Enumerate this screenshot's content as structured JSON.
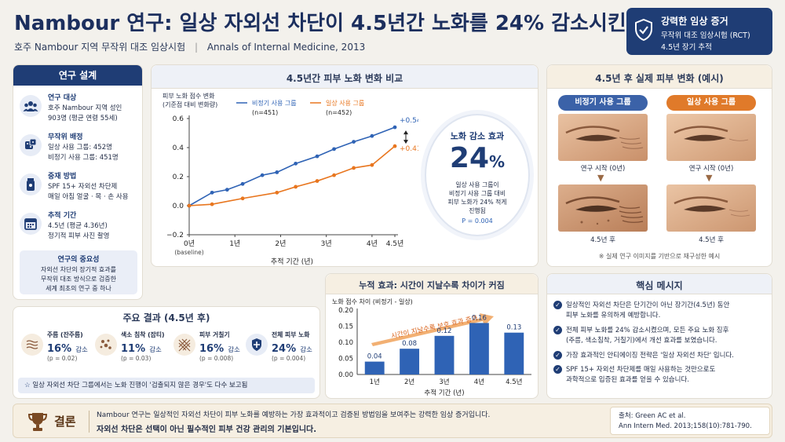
{
  "header": {
    "title": "Nambour 연구: 일상 자외선 차단이 4.5년간 노화를 24% 감소시킨다",
    "subtitle_study": "호주 Nambour 지역 무작위 대조 임상시험",
    "subtitle_sep": "|",
    "subtitle_journal": "Annals of Internal Medicine, 2013",
    "evidence_badge": {
      "title": "강력한 임상 증거",
      "line1": "무작위 대조 임상시험 (RCT)",
      "line2": "4.5년 장기 추적"
    }
  },
  "design": {
    "heading": "연구 설계",
    "items": [
      {
        "icon": "people-icon",
        "title": "연구 대상",
        "lines": [
          "호주 Nambour 지역 성인",
          "903명 (평균 연령 55세)"
        ]
      },
      {
        "icon": "dice-icon",
        "title": "무작위 배정",
        "lines": [
          "일상 사용 그룹: 452명",
          "비정기 사용 그룹: 451명"
        ]
      },
      {
        "icon": "sunscreen-icon",
        "title": "중재 방법",
        "lines": [
          "SPF 15+ 자외선 차단제",
          "매일 아침 얼굴 · 목 · 손 사용"
        ]
      },
      {
        "icon": "calendar-icon",
        "title": "추적 기간",
        "lines": [
          "4.5년 (평균 4.36년)",
          "정기적 피부 사진 촬영"
        ]
      }
    ],
    "importance": {
      "title": "연구의 중요성",
      "lines": [
        "자외선 차단의 장기적 효과를",
        "무작위 대조 방식으로 검증한",
        "세계 최초의 연구 중 하나"
      ]
    }
  },
  "line_chart": {
    "heading": "4.5년간 피부 노화 변화 비교",
    "ylabel_line1": "피부 노화 점수 변화",
    "ylabel_line2": "(기준점 대비 변화량)",
    "end_label_blue": "+0.54",
    "end_label_orange": "+0.41"
  },
  "effect_bubble": {
    "title": "노화 감소 효과",
    "number": "24",
    "unit": "%",
    "lines": [
      "일상 사용 그룹이",
      "비정기 사용 그룹 대비",
      "피부 노화가 24% 적게",
      "진행됨"
    ],
    "p_value": "P = 0.004"
  },
  "photos": {
    "heading": "4.5년 후 실제 피부 변화 (예시)",
    "group_left": "비정기 사용 그룹",
    "group_right": "일상 사용 그룹",
    "start_left": "연구 시작 (0년)",
    "start_right": "연구 시작 (0년)",
    "end_left": "4.5년 후",
    "end_right": "4.5년 후",
    "footnote": "※ 실제 연구 이미지를 기반으로 재구성한 예시"
  },
  "results": {
    "heading": "주요 결과 (4.5년 후)",
    "items": [
      {
        "icon": "wrinkle-icon",
        "name": "주름 (잔주름)",
        "value": "16%",
        "suffix": "감소",
        "p": "(p = 0.02)"
      },
      {
        "icon": "spots-icon",
        "name": "색소 침착 (잡티)",
        "value": "11%",
        "suffix": "감소",
        "p": "(p = 0.03)"
      },
      {
        "icon": "texture-icon",
        "name": "피부 거칠기",
        "value": "16%",
        "suffix": "감소",
        "p": "(p = 0.008)"
      },
      {
        "icon": "shield-plus-icon",
        "name": "전체 피부 노화",
        "value": "24%",
        "suffix": "감소",
        "p": "(p = 0.004)"
      }
    ],
    "note": "일상 자외선 차단 그룹에서는 노화 진행이 '검출되지 않은 경우'도 다수 보고됨"
  },
  "bar_chart": {
    "heading": "누적 효과: 시간이 지날수록 차이가 커짐",
    "arrow_text": "시간이 지날수록 보호 효과 증가"
  },
  "key_messages": {
    "heading": "핵심 메시지",
    "items": [
      [
        "일상적인 자외선 차단은 단기간이 아닌 장기간(4.5년) 동안",
        "피부 노화를 유의하게 예방합니다."
      ],
      [
        "전체 피부 노화를 24% 감소시켰으며, 모든 주요 노화 징후",
        "(주름, 색소침착, 거칠기)에서 개선 효과를 보였습니다."
      ],
      [
        "가장 효과적인 안티에이징 전략은 '일상 자외선 차단' 입니다."
      ],
      [
        "SPF 15+ 자외선 차단제를 매일 사용하는 것만으로도",
        "과학적으로 입증된 효과를 얻을 수 있습니다."
      ]
    ]
  },
  "conclusion": {
    "label": "결론",
    "line1": "Nambour 연구는 일상적인 자외선 차단이 피부 노화를 예방하는 가장 효과적이고 검증된 방법임을 보여주는 강력한 임상 증거입니다.",
    "line2": "자외선 차단은 선택이 아닌 필수적인 피부 건강 관리의 기본입니다.",
    "source_label": "출처: Green AC et al.",
    "source_ref": "Ann Intern Med. 2013;158(10):781-790."
  },
  "colors": {
    "navy": "#1f3d75",
    "blue": "#2f63b5",
    "orange": "#e8761f",
    "bar": "#2f63b5"
  },
  "chart_data": [
    {
      "type": "line",
      "title": "4.5년간 피부 노화 변화 비교",
      "xlabel": "추적 기간 (년)",
      "ylabel": "피부 노화 점수 변화 (기준점 대비 변화량)",
      "x_ticks": [
        "0년",
        "1년",
        "2년",
        "3년",
        "4년",
        "4.5년"
      ],
      "x_tick_sub": "(baseline)",
      "y_ticks": [
        "0.6",
        "0.4",
        "0.2",
        "0.0",
        "−0.2"
      ],
      "ylim": [
        -0.2,
        0.6
      ],
      "xlim": [
        0,
        4.5
      ],
      "grid": false,
      "series": [
        {
          "name": "비정기 사용 그룹",
          "n": "(n=451)",
          "color": "#2f63b5",
          "x": [
            0,
            0.5,
            0.83,
            1.17,
            1.6,
            1.92,
            2.33,
            2.8,
            3.17,
            3.6,
            4.0,
            4.5
          ],
          "y": [
            0.0,
            0.09,
            0.11,
            0.15,
            0.21,
            0.23,
            0.29,
            0.34,
            0.39,
            0.44,
            0.48,
            0.54
          ]
        },
        {
          "name": "일상 사용 그룹",
          "n": "(n=452)",
          "color": "#e8761f",
          "x": [
            0,
            0.5,
            1.17,
            1.92,
            2.33,
            2.8,
            3.17,
            3.6,
            4.0,
            4.5
          ],
          "y": [
            0.0,
            0.01,
            0.05,
            0.09,
            0.13,
            0.17,
            0.21,
            0.26,
            0.28,
            0.41
          ]
        }
      ]
    },
    {
      "type": "bar",
      "title": "누적 효과: 시간이 지날수록 차이가 커짐",
      "ylabel": "노화 점수 차이 (비정기 - 일상)",
      "xlabel": "추적 기간 (년)",
      "categories": [
        "1년",
        "2년",
        "3년",
        "4년",
        "4.5년"
      ],
      "values": [
        0.04,
        0.08,
        0.12,
        0.16,
        0.13
      ],
      "value_labels": [
        "0.04",
        "0.08",
        "0.12",
        "0.16",
        "0.13"
      ],
      "y_ticks": [
        "0.20",
        "0.15",
        "0.10",
        "0.05",
        "0.00"
      ],
      "ylim": [
        0,
        0.2
      ]
    }
  ]
}
